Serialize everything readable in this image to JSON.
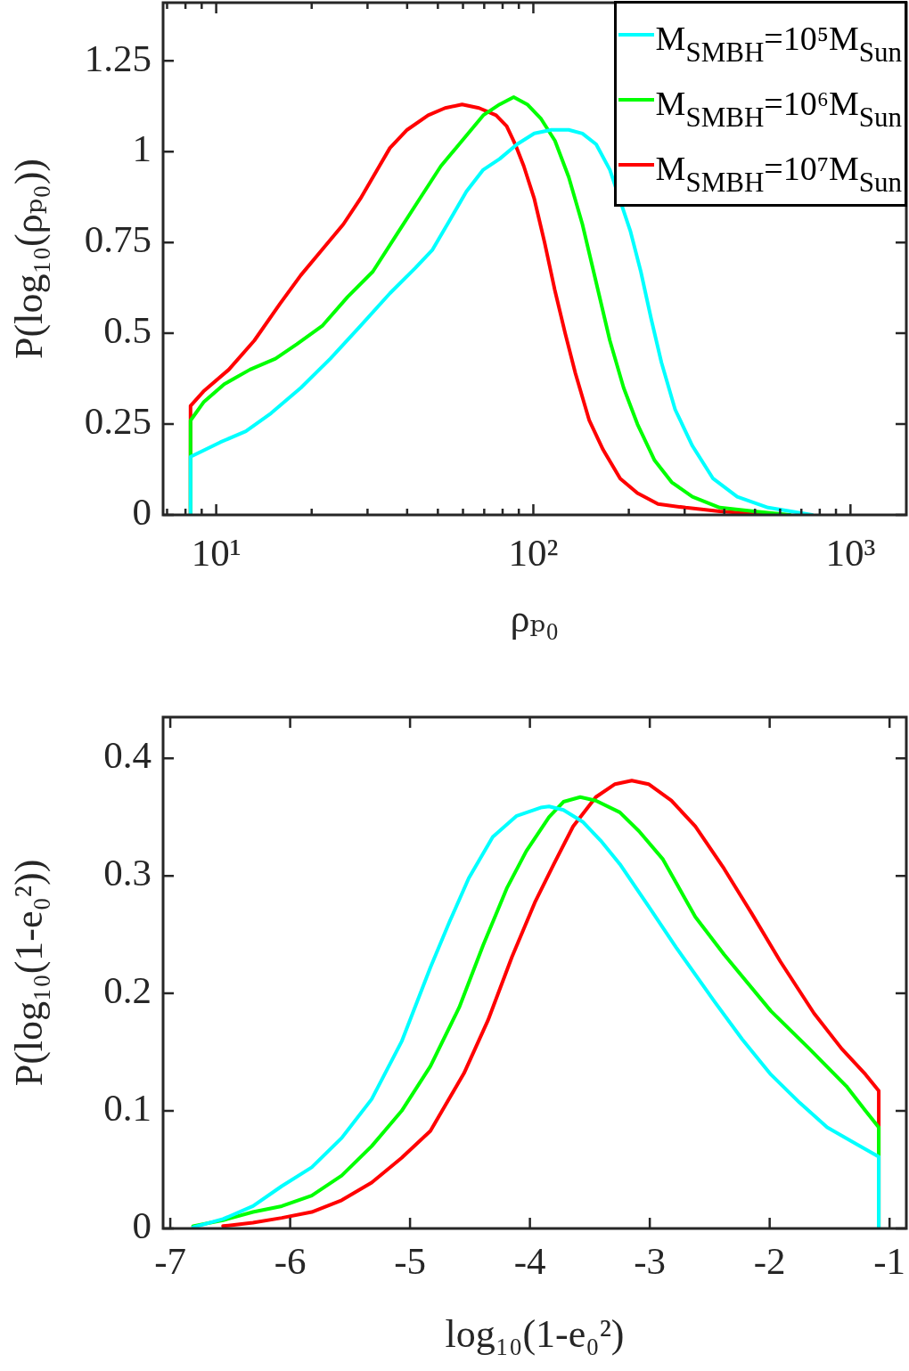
{
  "chart_data": [
    {
      "type": "line",
      "xlabel": "ρₚ₀",
      "ylabel": "P(log₁₀(ρₚ₀))",
      "log": "x",
      "xlim": [
        6.8,
        1500
      ],
      "ylim": [
        0,
        1.41
      ],
      "xticks": [
        {
          "value": 7,
          "label": null
        },
        {
          "value": 8,
          "label": null
        },
        {
          "value": 9,
          "label": null
        },
        {
          "value": 10,
          "label": "10¹"
        },
        {
          "value": 20,
          "label": null
        },
        {
          "value": 30,
          "label": null
        },
        {
          "value": 40,
          "label": null
        },
        {
          "value": 50,
          "label": null
        },
        {
          "value": 60,
          "label": null
        },
        {
          "value": 70,
          "label": null
        },
        {
          "value": 80,
          "label": null
        },
        {
          "value": 90,
          "label": null
        },
        {
          "value": 100,
          "label": "10²"
        },
        {
          "value": 200,
          "label": null
        },
        {
          "value": 300,
          "label": null
        },
        {
          "value": 400,
          "label": null
        },
        {
          "value": 500,
          "label": null
        },
        {
          "value": 600,
          "label": null
        },
        {
          "value": 700,
          "label": null
        },
        {
          "value": 800,
          "label": null
        },
        {
          "value": 900,
          "label": null
        },
        {
          "value": 1000,
          "label": "10³"
        }
      ],
      "yticks": [
        0,
        0.25,
        0.5,
        0.75,
        1,
        1.25
      ],
      "legend": "top right",
      "marker": "none",
      "series": [
        {
          "name": "M$_{SMBH}$=10⁵M$_{Sun}$",
          "color": "#00ffff",
          "x": [
            8.3,
            8.3,
            10.3,
            12.4,
            14.9,
            18.5,
            22.9,
            28.5,
            35.3,
            42.5,
            48.1,
            54.4,
            61.5,
            69.5,
            78.3,
            88.8,
            100.7,
            114,
            129.3,
            142.8,
            157.8,
            174.3,
            202.5,
            218.2,
            235.2,
            253.4,
            280,
            317.4,
            368.7,
            439.5,
            550,
            757
          ],
          "values": [
            0,
            0.16,
            0.2,
            0.23,
            0.28,
            0.35,
            0.43,
            0.52,
            0.61,
            0.68,
            0.73,
            0.81,
            0.89,
            0.95,
            0.98,
            1.02,
            1.05,
            1.06,
            1.06,
            1.05,
            1.02,
            0.95,
            0.78,
            0.67,
            0.54,
            0.42,
            0.29,
            0.19,
            0.1,
            0.05,
            0.02,
            0
          ]
        },
        {
          "name": "M$_{SMBH}$=10⁶M$_{Sun}$",
          "color": "#00ff00",
          "x": [
            8.3,
            8.3,
            9.12,
            10.6,
            12.78,
            15.38,
            17.95,
            21.58,
            25.95,
            31.2,
            37.6,
            43.8,
            51.1,
            59.6,
            69.5,
            78.3,
            86.7,
            95.7,
            105.8,
            117,
            129.3,
            142.8,
            157.8,
            174.3,
            192.6,
            212.9,
            241.2,
            273,
            317.4,
            387,
            497,
            645
          ],
          "values": [
            0,
            0.26,
            0.31,
            0.36,
            0.4,
            0.43,
            0.47,
            0.52,
            0.6,
            0.67,
            0.78,
            0.87,
            0.96,
            1.03,
            1.1,
            1.13,
            1.15,
            1.13,
            1.09,
            1.03,
            0.93,
            0.8,
            0.64,
            0.48,
            0.35,
            0.25,
            0.15,
            0.09,
            0.05,
            0.02,
            0.01,
            0
          ]
        },
        {
          "name": "M$_{SMBH}$=10⁷M$_{Sun}$",
          "color": "#ff0000",
          "x": [
            8.3,
            8.3,
            9.12,
            10.96,
            13.19,
            15.86,
            18.49,
            21.58,
            25.17,
            28.47,
            32.2,
            35.3,
            40,
            46.6,
            52.7,
            59.6,
            67.4,
            76.3,
            82.4,
            87.7,
            93.3,
            100.7,
            108.5,
            116.8,
            126,
            135.7,
            150.1,
            165.8,
            187.9,
            212.9,
            247.3,
            302,
            387,
            560
          ],
          "values": [
            0,
            0.3,
            0.34,
            0.4,
            0.48,
            0.58,
            0.66,
            0.73,
            0.8,
            0.87,
            0.95,
            1.01,
            1.06,
            1.1,
            1.12,
            1.13,
            1.12,
            1.1,
            1.07,
            1.02,
            0.96,
            0.87,
            0.75,
            0.62,
            0.5,
            0.39,
            0.26,
            0.18,
            0.1,
            0.06,
            0.03,
            0.02,
            0.01,
            0
          ]
        }
      ]
    },
    {
      "type": "line",
      "xlabel": "log₁₀(1-e₀²)",
      "ylabel": "P(log₁₀(1-e₀²))",
      "xlim": [
        -7.06,
        -0.86
      ],
      "ylim": [
        0,
        0.435
      ],
      "xticks": [
        -7,
        -6,
        -5,
        -4,
        -3,
        -2,
        -1
      ],
      "yticks": [
        0,
        0.1,
        0.2,
        0.3,
        0.4
      ],
      "marker": "none",
      "series": [
        {
          "color": "#00ffff",
          "x": [
            -6.81,
            -6.56,
            -6.31,
            -6.07,
            -5.82,
            -5.57,
            -5.32,
            -5.07,
            -4.83,
            -4.67,
            -4.51,
            -4.31,
            -4.11,
            -3.91,
            -3.84,
            -3.72,
            -3.56,
            -3.41,
            -3.25,
            -3.01,
            -2.78,
            -2.46,
            -2.23,
            -1.99,
            -1.75,
            -1.52,
            -1.28,
            -1.09,
            -1.09
          ],
          "values": [
            0.001,
            0.008,
            0.019,
            0.036,
            0.052,
            0.077,
            0.11,
            0.159,
            0.222,
            0.261,
            0.298,
            0.333,
            0.351,
            0.358,
            0.359,
            0.356,
            0.346,
            0.33,
            0.31,
            0.274,
            0.239,
            0.193,
            0.161,
            0.131,
            0.107,
            0.086,
            0.072,
            0.061,
            0
          ]
        },
        {
          "color": "#00ff00",
          "x": [
            -6.81,
            -6.56,
            -6.31,
            -6.07,
            -5.82,
            -5.57,
            -5.32,
            -5.07,
            -4.83,
            -4.59,
            -4.39,
            -4.19,
            -4.03,
            -3.84,
            -3.72,
            -3.58,
            -3.45,
            -3.25,
            -3.09,
            -2.89,
            -2.62,
            -2.38,
            -1.99,
            -1.67,
            -1.36,
            -1.2,
            -1.09,
            -1.09
          ],
          "values": [
            0.002,
            0.007,
            0.014,
            0.019,
            0.028,
            0.045,
            0.07,
            0.1,
            0.138,
            0.188,
            0.241,
            0.29,
            0.321,
            0.35,
            0.363,
            0.367,
            0.364,
            0.354,
            0.338,
            0.314,
            0.265,
            0.233,
            0.185,
            0.153,
            0.121,
            0.1,
            0.086,
            0
          ]
        },
        {
          "color": "#ff0000",
          "x": [
            -6.56,
            -6.31,
            -6.07,
            -5.82,
            -5.57,
            -5.32,
            -5.07,
            -4.83,
            -4.55,
            -4.35,
            -4.15,
            -3.96,
            -3.8,
            -3.64,
            -3.45,
            -3.29,
            -3.15,
            -3.01,
            -2.82,
            -2.62,
            -2.38,
            -2.15,
            -1.91,
            -1.63,
            -1.4,
            -1.2,
            -1.09,
            -1.09
          ],
          "values": [
            0.002,
            0.005,
            0.009,
            0.014,
            0.024,
            0.039,
            0.06,
            0.083,
            0.132,
            0.177,
            0.231,
            0.277,
            0.31,
            0.342,
            0.367,
            0.378,
            0.381,
            0.378,
            0.364,
            0.342,
            0.306,
            0.268,
            0.227,
            0.183,
            0.153,
            0.131,
            0.117,
            0
          ]
        }
      ]
    }
  ]
}
